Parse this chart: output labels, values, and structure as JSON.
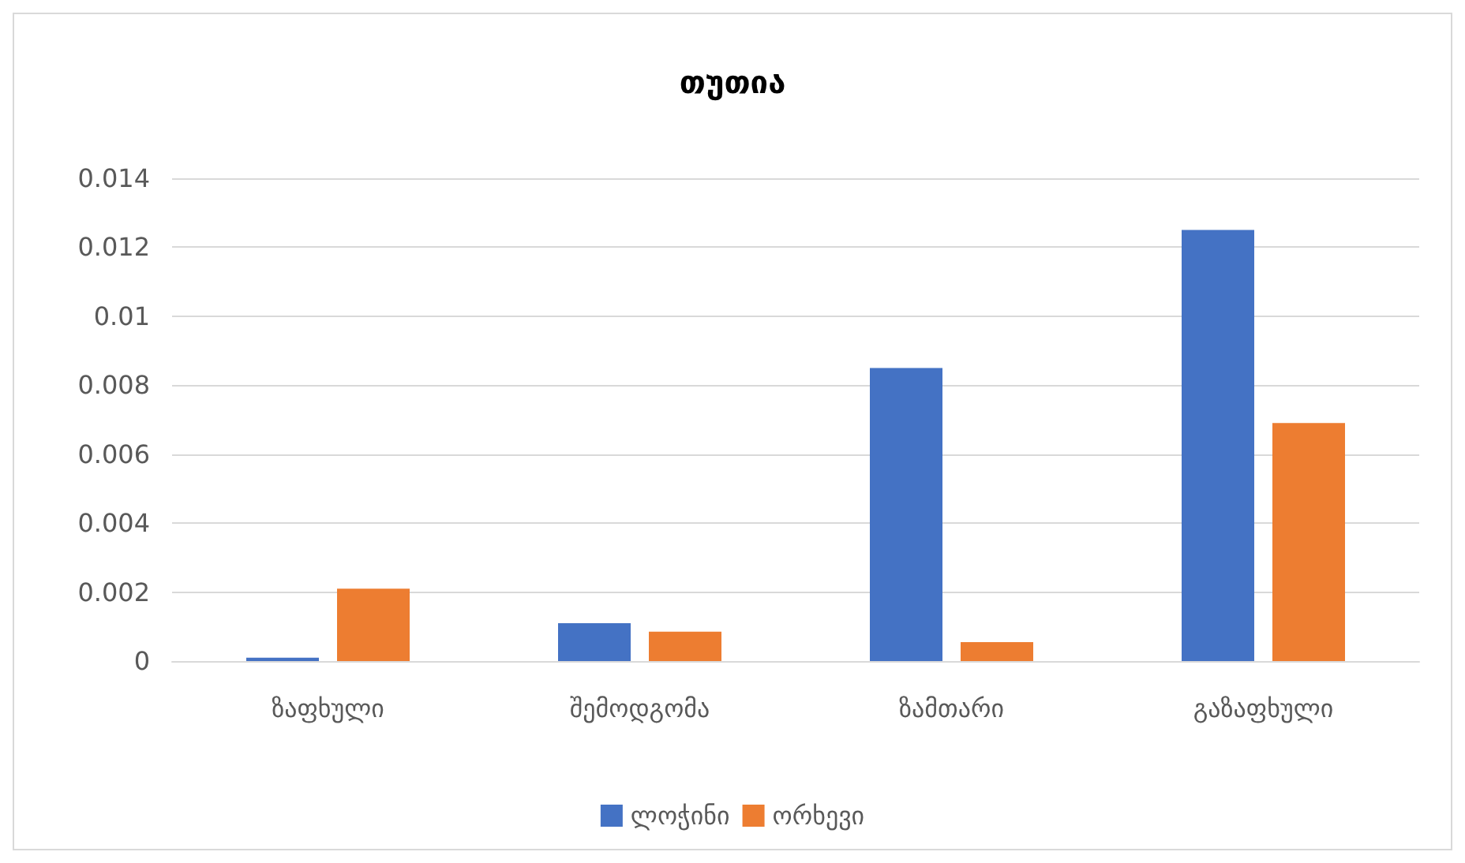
{
  "chart_data": {
    "type": "bar",
    "title": "თუთია",
    "categories": [
      "ზაფხული",
      "შემოდგომა",
      "ზამთარი",
      "გაზაფხული"
    ],
    "series": [
      {
        "name": "ლოჭინი",
        "color": "#4472c4",
        "values": [
          0.0001,
          0.0011,
          0.0085,
          0.0125
        ]
      },
      {
        "name": "ორხევი",
        "color": "#ed7d31",
        "values": [
          0.0021,
          0.00085,
          0.00055,
          0.0069
        ]
      }
    ],
    "ylim": [
      0,
      0.014
    ],
    "yticks": [
      0,
      0.002,
      0.004,
      0.006,
      0.008,
      0.01,
      0.012,
      0.014
    ],
    "grid": "y",
    "legend": "bottom"
  }
}
